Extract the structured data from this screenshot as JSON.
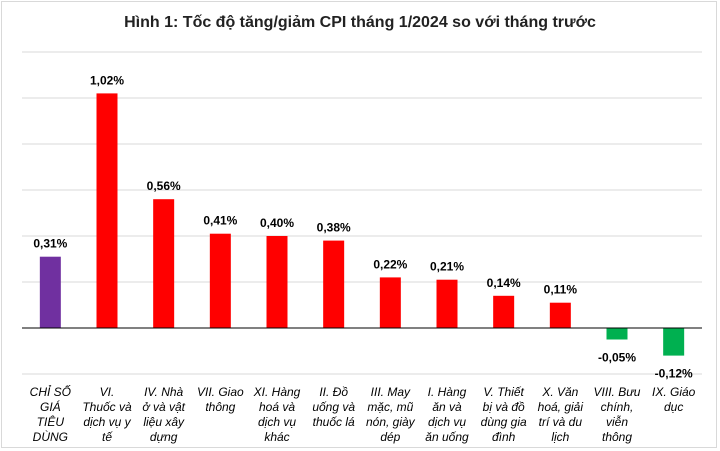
{
  "chart_data": {
    "type": "bar",
    "title": "Hình 1: Tốc độ tăng/giảm CPI tháng 1/2024 so với tháng trước",
    "xlabel": "",
    "ylabel": "",
    "ylim": [
      -0.2,
      1.2
    ],
    "grid": true,
    "legend": "none",
    "categories": [
      "CHỈ SỐ GIÁ TIÊU DÙNG",
      "VI. Thuốc và dịch vụ y tế",
      "IV. Nhà ở và vật liệu xây dựng",
      "VII. Giao thông",
      "XI. Hàng hoá và dịch vụ khác",
      "II. Đồ uống và thuốc lá",
      "III. May mặc, mũ nón, giày dép",
      "I. Hàng ăn và dịch vụ ăn uống",
      "V. Thiết bị và đồ dùng gia đình",
      "X. Văn hoá, giải trí và du lịch",
      "VIII. Bưu chính, viễn thông",
      "IX. Giáo dục"
    ],
    "category_lines": [
      [
        "CHỈ SỐ",
        "GIÁ",
        "TIÊU",
        "DÙNG"
      ],
      [
        "VI.",
        "Thuốc và",
        "dịch vụ y",
        "tế"
      ],
      [
        "IV. Nhà",
        "ở và vật",
        "liệu xây",
        "dựng"
      ],
      [
        "VII. Giao",
        "thông"
      ],
      [
        "XI. Hàng",
        "hoá và",
        "dịch vụ",
        "khác"
      ],
      [
        "II. Đồ",
        "uống và",
        "thuốc lá"
      ],
      [
        "III. May",
        "mặc, mũ",
        "nón, giày",
        "dép"
      ],
      [
        "I. Hàng",
        "ăn và",
        "dịch vụ",
        "ăn uống"
      ],
      [
        "V. Thiết",
        "bị và đồ",
        "dùng gia",
        "đình"
      ],
      [
        "X. Văn",
        "hoá, giải",
        "trí và du",
        "lịch"
      ],
      [
        "VIII. Bưu",
        "chính,",
        "viễn",
        "thông"
      ],
      [
        "IX. Giáo",
        "dục"
      ]
    ],
    "values": [
      0.31,
      1.02,
      0.56,
      0.41,
      0.4,
      0.38,
      0.22,
      0.21,
      0.14,
      0.11,
      -0.05,
      -0.12
    ],
    "value_labels": [
      "0,31%",
      "1,02%",
      "0,56%",
      "0,41%",
      "0,40%",
      "0,38%",
      "0,22%",
      "0,21%",
      "0,14%",
      "0,11%",
      "-0,05%",
      "-0,12%"
    ],
    "colors": {
      "overall": "#7030a0",
      "increase": "#ff0000",
      "decrease": "#00b050",
      "grid": "#d9d9d9",
      "axis": "#000000"
    }
  }
}
